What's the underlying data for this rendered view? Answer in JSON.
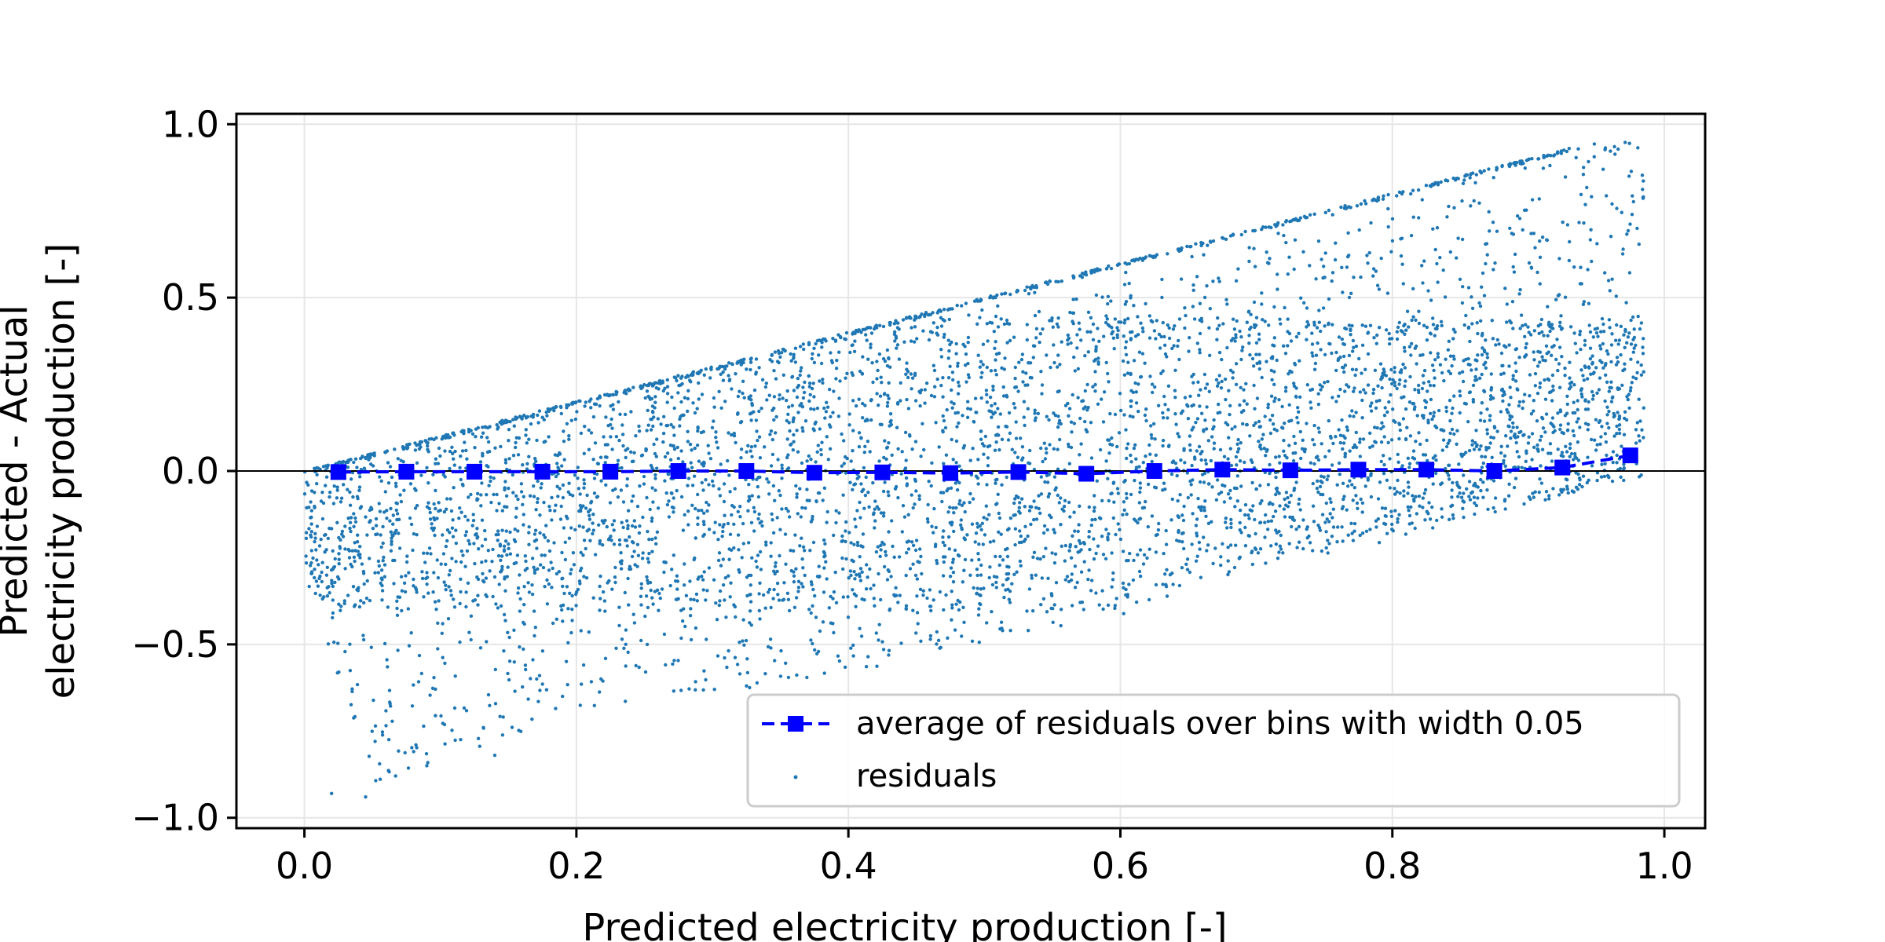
{
  "chart_data": {
    "type": "scatter",
    "xlabel": "Predicted electricity production [-]",
    "ylabel_lines": [
      "Predicted - Actual",
      "electricity production [-]"
    ],
    "xlim": [
      -0.05,
      1.03
    ],
    "ylim": [
      -1.03,
      1.03
    ],
    "x_ticks": [
      0.0,
      0.2,
      0.4,
      0.6,
      0.8,
      1.0
    ],
    "x_tick_labels": [
      "0.0",
      "0.2",
      "0.4",
      "0.6",
      "0.8",
      "1.0"
    ],
    "y_ticks": [
      1.0,
      0.5,
      0.0,
      -0.5,
      -1.0
    ],
    "y_tick_labels": [
      "1.0",
      "0.5",
      "0.0",
      "−0.5",
      "−1.0"
    ],
    "grid": true,
    "zero_line": 0.0,
    "legend_position": "lower-right",
    "legend": [
      {
        "label": "average of residuals over bins with width 0.05",
        "style": "dashed line with square markers",
        "color": "#0000ff"
      },
      {
        "label": "residuals",
        "style": "small dots",
        "color": "#1f77b4"
      }
    ],
    "series": [
      {
        "name": "average of residuals over bins with width 0.05",
        "color": "#0000ff",
        "x": [
          0.025,
          0.075,
          0.125,
          0.175,
          0.225,
          0.275,
          0.325,
          0.375,
          0.425,
          0.475,
          0.525,
          0.575,
          0.625,
          0.675,
          0.725,
          0.775,
          0.825,
          0.875,
          0.925,
          0.975
        ],
        "y": [
          -0.003,
          -0.002,
          -0.002,
          -0.002,
          -0.002,
          0.0,
          0.0,
          -0.005,
          -0.004,
          -0.006,
          -0.003,
          -0.008,
          0.0,
          0.004,
          0.002,
          0.004,
          0.004,
          0.0,
          0.01,
          0.045
        ]
      },
      {
        "name": "residuals",
        "color": "#1f77b4",
        "x_range": [
          0.0,
          0.985
        ],
        "upper_envelope": "y = x",
        "lower_envelope_points": [
          [
            0.0,
            -0.3
          ],
          [
            0.05,
            -0.9
          ],
          [
            0.2,
            -0.72
          ],
          [
            0.4,
            -0.58
          ],
          [
            0.6,
            -0.42
          ],
          [
            0.8,
            -0.2
          ],
          [
            0.98,
            -0.02
          ]
        ],
        "outlier_extremes": {
          "y_max": 0.93,
          "y_min": -0.94
        }
      }
    ]
  }
}
